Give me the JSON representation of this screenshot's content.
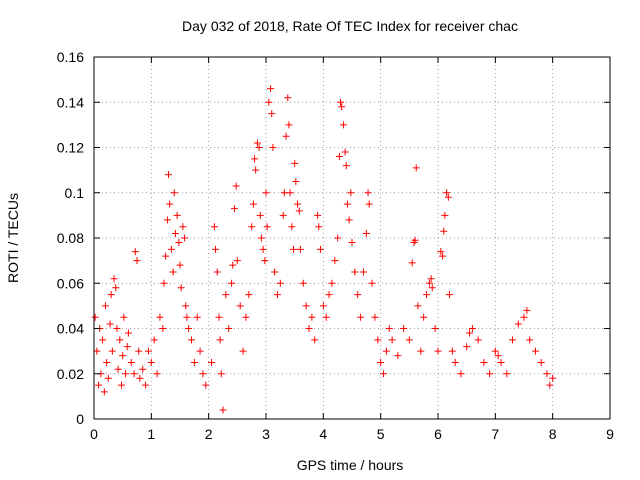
{
  "chart_data": {
    "type": "scatter",
    "title": "Day 032 of 2018, Rate Of TEC Index for receiver chac",
    "xlabel": "GPS time / hours",
    "ylabel": "ROTI / TECUs",
    "xlim": [
      0,
      9
    ],
    "ylim": [
      0,
      0.16
    ],
    "grid": true,
    "marker": "+",
    "series_color": "#ff0000",
    "x_ticks": [
      {
        "value": 0,
        "label": "0"
      },
      {
        "value": 1,
        "label": "1"
      },
      {
        "value": 2,
        "label": "2"
      },
      {
        "value": 3,
        "label": "3"
      },
      {
        "value": 4,
        "label": "4"
      },
      {
        "value": 5,
        "label": "5"
      },
      {
        "value": 6,
        "label": "6"
      },
      {
        "value": 7,
        "label": "7"
      },
      {
        "value": 8,
        "label": "8"
      },
      {
        "value": 9,
        "label": "9"
      }
    ],
    "y_ticks": [
      {
        "value": 0,
        "label": "0"
      },
      {
        "value": 0.02,
        "label": "0.02"
      },
      {
        "value": 0.04,
        "label": "0.04"
      },
      {
        "value": 0.06,
        "label": "0.06"
      },
      {
        "value": 0.08,
        "label": "0.08"
      },
      {
        "value": 0.1,
        "label": "0.1"
      },
      {
        "value": 0.12,
        "label": "0.12"
      },
      {
        "value": 0.14,
        "label": "0.14"
      },
      {
        "value": 0.16,
        "label": "0.16"
      }
    ],
    "points": [
      [
        0.02,
        0.045
      ],
      [
        0.05,
        0.03
      ],
      [
        0.08,
        0.015
      ],
      [
        0.1,
        0.04
      ],
      [
        0.12,
        0.02
      ],
      [
        0.15,
        0.035
      ],
      [
        0.18,
        0.012
      ],
      [
        0.2,
        0.05
      ],
      [
        0.22,
        0.025
      ],
      [
        0.25,
        0.018
      ],
      [
        0.28,
        0.042
      ],
      [
        0.3,
        0.055
      ],
      [
        0.32,
        0.03
      ],
      [
        0.35,
        0.062
      ],
      [
        0.38,
        0.058
      ],
      [
        0.4,
        0.04
      ],
      [
        0.42,
        0.022
      ],
      [
        0.45,
        0.035
      ],
      [
        0.48,
        0.015
      ],
      [
        0.5,
        0.028
      ],
      [
        0.52,
        0.045
      ],
      [
        0.55,
        0.02
      ],
      [
        0.58,
        0.032
      ],
      [
        0.6,
        0.038
      ],
      [
        0.65,
        0.025
      ],
      [
        0.7,
        0.02
      ],
      [
        0.72,
        0.074
      ],
      [
        0.75,
        0.07
      ],
      [
        0.78,
        0.03
      ],
      [
        0.8,
        0.018
      ],
      [
        0.85,
        0.022
      ],
      [
        0.9,
        0.015
      ],
      [
        0.95,
        0.03
      ],
      [
        1.0,
        0.025
      ],
      [
        1.05,
        0.035
      ],
      [
        1.1,
        0.02
      ],
      [
        1.15,
        0.045
      ],
      [
        1.2,
        0.04
      ],
      [
        1.22,
        0.06
      ],
      [
        1.25,
        0.072
      ],
      [
        1.28,
        0.088
      ],
      [
        1.3,
        0.108
      ],
      [
        1.32,
        0.095
      ],
      [
        1.35,
        0.075
      ],
      [
        1.38,
        0.065
      ],
      [
        1.4,
        0.1
      ],
      [
        1.42,
        0.082
      ],
      [
        1.45,
        0.09
      ],
      [
        1.48,
        0.078
      ],
      [
        1.5,
        0.068
      ],
      [
        1.52,
        0.058
      ],
      [
        1.55,
        0.085
      ],
      [
        1.58,
        0.08
      ],
      [
        1.6,
        0.05
      ],
      [
        1.62,
        0.045
      ],
      [
        1.65,
        0.04
      ],
      [
        1.7,
        0.035
      ],
      [
        1.75,
        0.025
      ],
      [
        1.8,
        0.045
      ],
      [
        1.85,
        0.03
      ],
      [
        1.9,
        0.02
      ],
      [
        1.95,
        0.015
      ],
      [
        2.05,
        0.025
      ],
      [
        2.1,
        0.085
      ],
      [
        2.12,
        0.075
      ],
      [
        2.15,
        0.065
      ],
      [
        2.18,
        0.045
      ],
      [
        2.2,
        0.035
      ],
      [
        2.22,
        0.02
      ],
      [
        2.25,
        0.004
      ],
      [
        2.3,
        0.055
      ],
      [
        2.35,
        0.04
      ],
      [
        2.4,
        0.06
      ],
      [
        2.42,
        0.068
      ],
      [
        2.45,
        0.093
      ],
      [
        2.48,
        0.103
      ],
      [
        2.5,
        0.07
      ],
      [
        2.55,
        0.05
      ],
      [
        2.6,
        0.03
      ],
      [
        2.65,
        0.045
      ],
      [
        2.7,
        0.055
      ],
      [
        2.75,
        0.085
      ],
      [
        2.78,
        0.095
      ],
      [
        2.8,
        0.115
      ],
      [
        2.82,
        0.11
      ],
      [
        2.85,
        0.122
      ],
      [
        2.88,
        0.12
      ],
      [
        2.9,
        0.09
      ],
      [
        2.92,
        0.08
      ],
      [
        2.95,
        0.075
      ],
      [
        2.98,
        0.07
      ],
      [
        3.0,
        0.1
      ],
      [
        3.02,
        0.085
      ],
      [
        3.05,
        0.14
      ],
      [
        3.08,
        0.146
      ],
      [
        3.1,
        0.135
      ],
      [
        3.12,
        0.12
      ],
      [
        3.15,
        0.065
      ],
      [
        3.2,
        0.055
      ],
      [
        3.25,
        0.06
      ],
      [
        3.3,
        0.09
      ],
      [
        3.32,
        0.1
      ],
      [
        3.35,
        0.125
      ],
      [
        3.38,
        0.142
      ],
      [
        3.4,
        0.13
      ],
      [
        3.42,
        0.1
      ],
      [
        3.45,
        0.085
      ],
      [
        3.48,
        0.075
      ],
      [
        3.5,
        0.113
      ],
      [
        3.52,
        0.105
      ],
      [
        3.55,
        0.095
      ],
      [
        3.58,
        0.092
      ],
      [
        3.6,
        0.075
      ],
      [
        3.65,
        0.06
      ],
      [
        3.7,
        0.05
      ],
      [
        3.75,
        0.04
      ],
      [
        3.8,
        0.045
      ],
      [
        3.85,
        0.035
      ],
      [
        3.9,
        0.09
      ],
      [
        3.92,
        0.085
      ],
      [
        3.95,
        0.075
      ],
      [
        4.0,
        0.05
      ],
      [
        4.05,
        0.045
      ],
      [
        4.1,
        0.055
      ],
      [
        4.15,
        0.06
      ],
      [
        4.2,
        0.07
      ],
      [
        4.25,
        0.08
      ],
      [
        4.28,
        0.116
      ],
      [
        4.3,
        0.14
      ],
      [
        4.32,
        0.138
      ],
      [
        4.35,
        0.13
      ],
      [
        4.38,
        0.118
      ],
      [
        4.4,
        0.112
      ],
      [
        4.42,
        0.095
      ],
      [
        4.45,
        0.088
      ],
      [
        4.48,
        0.1
      ],
      [
        4.5,
        0.078
      ],
      [
        4.55,
        0.065
      ],
      [
        4.6,
        0.055
      ],
      [
        4.65,
        0.045
      ],
      [
        4.7,
        0.065
      ],
      [
        4.75,
        0.082
      ],
      [
        4.78,
        0.1
      ],
      [
        4.8,
        0.095
      ],
      [
        4.85,
        0.06
      ],
      [
        4.9,
        0.045
      ],
      [
        4.95,
        0.035
      ],
      [
        5.0,
        0.025
      ],
      [
        5.05,
        0.02
      ],
      [
        5.1,
        0.03
      ],
      [
        5.15,
        0.04
      ],
      [
        5.2,
        0.035
      ],
      [
        5.3,
        0.028
      ],
      [
        5.4,
        0.04
      ],
      [
        5.5,
        0.035
      ],
      [
        5.55,
        0.069
      ],
      [
        5.58,
        0.078
      ],
      [
        5.6,
        0.079
      ],
      [
        5.62,
        0.111
      ],
      [
        5.65,
        0.05
      ],
      [
        5.7,
        0.03
      ],
      [
        5.75,
        0.045
      ],
      [
        5.8,
        0.055
      ],
      [
        5.85,
        0.06
      ],
      [
        5.88,
        0.062
      ],
      [
        5.9,
        0.058
      ],
      [
        5.95,
        0.04
      ],
      [
        6.0,
        0.03
      ],
      [
        6.05,
        0.074
      ],
      [
        6.08,
        0.072
      ],
      [
        6.1,
        0.083
      ],
      [
        6.12,
        0.09
      ],
      [
        6.15,
        0.1
      ],
      [
        6.18,
        0.098
      ],
      [
        6.2,
        0.055
      ],
      [
        6.25,
        0.03
      ],
      [
        6.3,
        0.025
      ],
      [
        6.4,
        0.02
      ],
      [
        6.5,
        0.032
      ],
      [
        6.55,
        0.038
      ],
      [
        6.6,
        0.04
      ],
      [
        6.7,
        0.035
      ],
      [
        6.8,
        0.025
      ],
      [
        6.9,
        0.02
      ],
      [
        7.0,
        0.03
      ],
      [
        7.05,
        0.028
      ],
      [
        7.1,
        0.025
      ],
      [
        7.2,
        0.02
      ],
      [
        7.3,
        0.035
      ],
      [
        7.4,
        0.042
      ],
      [
        7.5,
        0.045
      ],
      [
        7.55,
        0.048
      ],
      [
        7.6,
        0.035
      ],
      [
        7.7,
        0.03
      ],
      [
        7.8,
        0.025
      ],
      [
        7.9,
        0.02
      ],
      [
        7.95,
        0.015
      ],
      [
        8.0,
        0.018
      ]
    ]
  }
}
